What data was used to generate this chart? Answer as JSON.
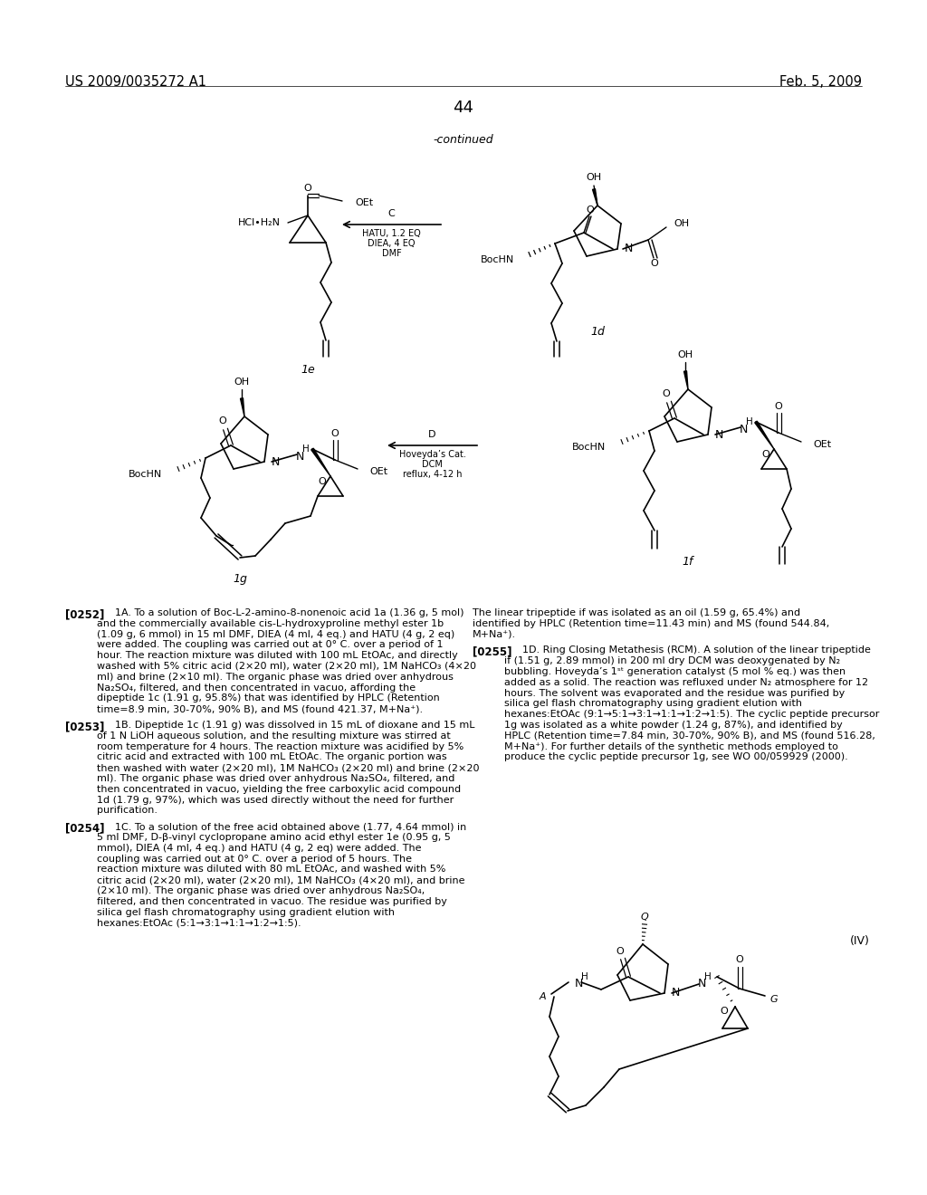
{
  "page_header_left": "US 2009/0035272 A1",
  "page_header_right": "Feb. 5, 2009",
  "page_number": "44",
  "continued_label": "-continued",
  "background_color": "#ffffff",
  "text_color": "#000000",
  "font_size_header": 10.5,
  "font_size_body": 8.5,
  "paragraphs": [
    {
      "tag": "[0252]",
      "text": "1A. To a solution of Boc-L-2-amino-8-nonenoic acid 1a (1.36 g, 5 mol) and the commercially available cis-L-hydroxyproline methyl ester 1b (1.09 g, 6 mmol) in 15 ml DMF, DIEA (4 ml, 4 eq.) and HATU (4 g, 2 eq) were added. The coupling was carried out at 0° C. over a period of 1 hour. The reaction mixture was diluted with 100 mL EtOAc, and directly washed with 5% citric acid (2×20 ml), water (2×20 ml), 1M NaHCO₃ (4×20 ml) and brine (2×10 ml). The organic phase was dried over anhydrous Na₂SO₄, filtered, and then concentrated in vacuo, affording the dipeptide 1c (1.91 g, 95.8%) that was identified by HPLC (Retention time=8.9 min, 30-70%, 90% B), and MS (found 421.37, M+Na⁺)."
    },
    {
      "tag": "[0253]",
      "text": "1B. Dipeptide 1c (1.91 g) was dissolved in 15 mL of dioxane and 15 mL of 1 N LiOH aqueous solution, and the resulting mixture was stirred at room temperature for 4 hours. The reaction mixture was acidified by 5% citric acid and extracted with 100 mL EtOAc. The organic portion was then washed with water (2×20 ml), 1M NaHCO₃ (2×20 ml) and brine (2×20 ml). The organic phase was dried over anhydrous Na₂SO₄, filtered, and then concentrated in vacuo, yielding the free carboxylic acid compound 1d (1.79 g, 97%), which was used directly without the need for further purification."
    },
    {
      "tag": "[0254]",
      "text": "1C. To a solution of the free acid obtained above (1.77, 4.64 mmol) in 5 ml DMF, D-β-vinyl cyclopropane amino acid ethyl ester 1e (0.95 g, 5 mmol), DIEA (4 ml, 4 eq.) and HATU (4 g, 2 eq) were added. The coupling was carried out at 0° C. over a period of 5 hours. The reaction mixture was diluted with 80 mL EtOAc, and washed with 5% citric acid (2×20 ml), water (2×20 ml), 1M NaHCO₃ (4×20 ml), and brine (2×10 ml). The organic phase was dried over anhydrous Na₂SO₄, filtered, and then concentrated in vacuo. The residue was purified by silica gel flash chromatography using gradient elution with hexanes:EtOAc (5:1→3:1→1:1→1:2→1:5)."
    },
    {
      "tag": "right_top",
      "text": "The linear tripeptide if was isolated as an oil (1.59 g, 65.4%) and identified by HPLC (Retention time=11.43 min) and MS (found 544.84, M+Na⁺)."
    },
    {
      "tag": "[0255]",
      "text": "1D. Ring Closing Metathesis (RCM). A solution of the linear tripeptide if (1.51 g, 2.89 mmol) in 200 ml dry DCM was deoxygenated by N₂ bubbling. Hoveyda’s 1ˢᵗ generation catalyst (5 mol % eq.) was then added as a solid. The reaction was refluxed under N₂ atmosphere for 12 hours. The solvent was evaporated and the residue was purified by silica gel flash chromatography using gradient elution with hexanes:EtOAc (9:1→5:1→3:1→1:1→1:2→1:5). The cyclic peptide precursor 1g was isolated as a white powder (1.24 g, 87%), and identified by HPLC (Retention time=7.84 min, 30-70%, 90% B), and MS (found 516.28, M+Na⁺). For further details of the synthetic methods employed to produce the cyclic peptide precursor 1g, see WO 00/059929 (2000)."
    }
  ]
}
